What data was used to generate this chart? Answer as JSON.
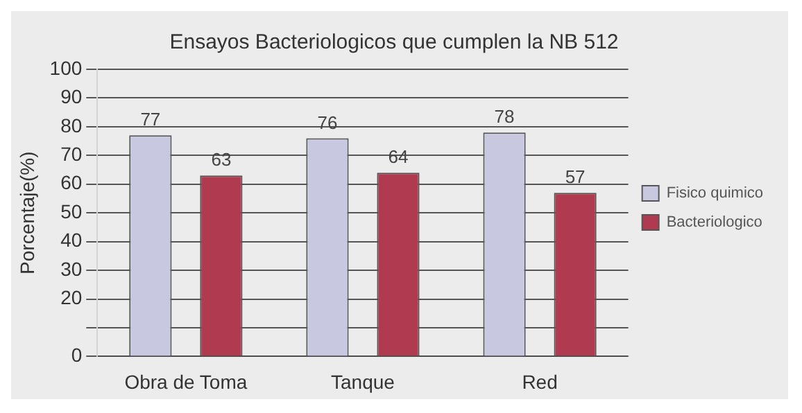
{
  "chart_data": {
    "type": "bar",
    "title": "Ensayos Bacteriologicos que cumplen la NB 512",
    "ylabel": "Porcentaje(%)",
    "categories": [
      "Obra de Toma",
      "Tanque",
      "Red"
    ],
    "series": [
      {
        "name": "Fisico quimico",
        "color": "#c8c8e0",
        "values": [
          77,
          76,
          78
        ]
      },
      {
        "name": "Bacteriologico",
        "color": "#b03a50",
        "values": [
          63,
          64,
          57
        ]
      }
    ],
    "ylim": [
      0,
      100
    ],
    "yticks": [
      0,
      {
        "value": 10,
        "label": null
      },
      20,
      30,
      40,
      50,
      60,
      70,
      80,
      90,
      100
    ],
    "grid": "y",
    "legend": "right",
    "data_labels": true
  }
}
